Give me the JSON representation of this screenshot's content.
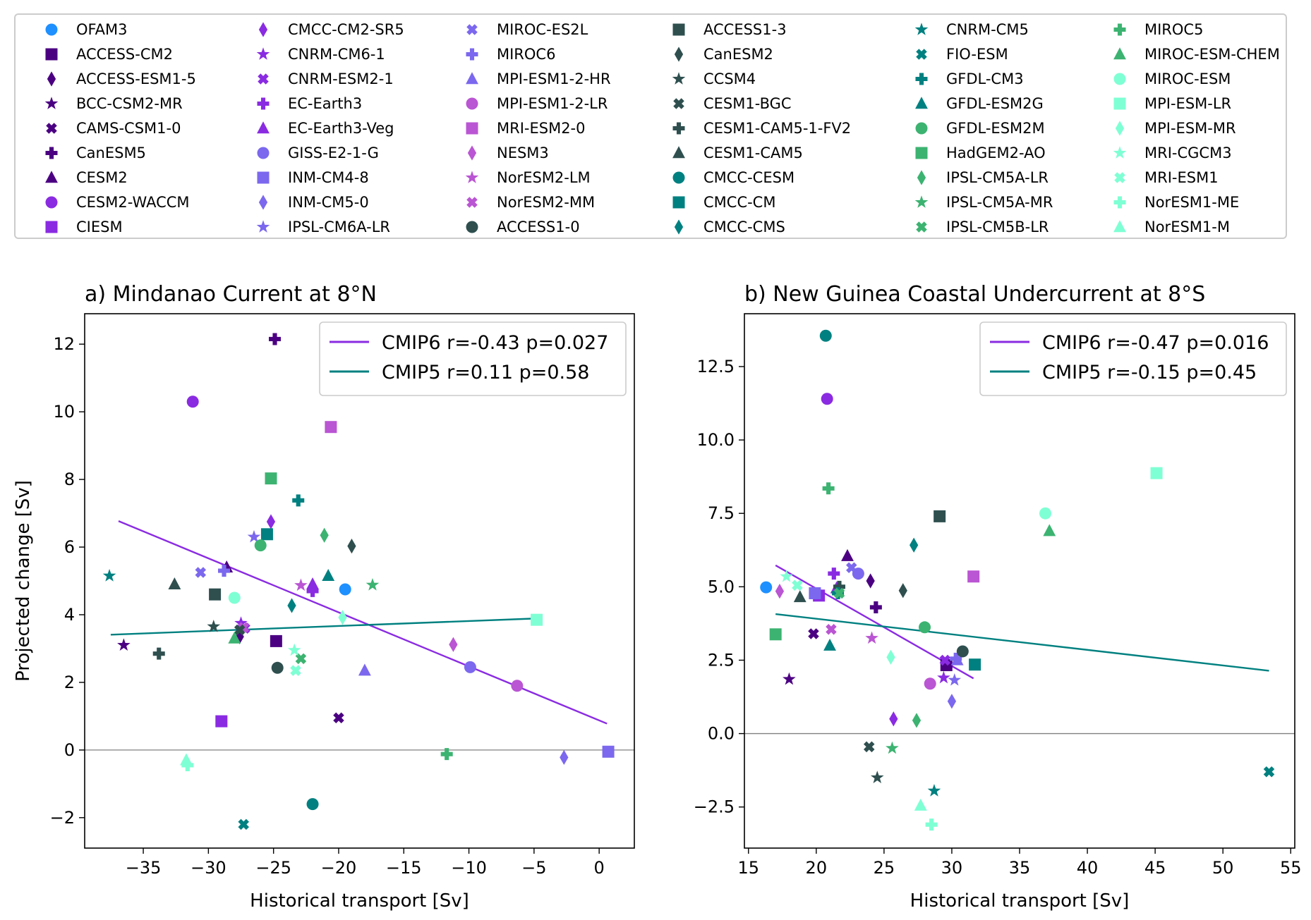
{
  "legend": {
    "entries": [
      {
        "name": "OFAM3",
        "marker": "circle",
        "color": "#1e90ff"
      },
      {
        "name": "ACCESS-CM2",
        "marker": "square",
        "color": "#4b0082"
      },
      {
        "name": "ACCESS-ESM1-5",
        "marker": "diamond",
        "color": "#4b0082"
      },
      {
        "name": "BCC-CSM2-MR",
        "marker": "star",
        "color": "#4b0082"
      },
      {
        "name": "CAMS-CSM1-0",
        "marker": "x",
        "color": "#4b0082"
      },
      {
        "name": "CanESM5",
        "marker": "plus",
        "color": "#4b0082"
      },
      {
        "name": "CESM2",
        "marker": "triangle",
        "color": "#4b0082"
      },
      {
        "name": "CESM2-WACCM",
        "marker": "circle",
        "color": "#8a2be2"
      },
      {
        "name": "CIESM",
        "marker": "square",
        "color": "#8a2be2"
      },
      {
        "name": "CMCC-CM2-SR5",
        "marker": "diamond",
        "color": "#8a2be2"
      },
      {
        "name": "CNRM-CM6-1",
        "marker": "star",
        "color": "#8a2be2"
      },
      {
        "name": "CNRM-ESM2-1",
        "marker": "x",
        "color": "#8a2be2"
      },
      {
        "name": "EC-Earth3",
        "marker": "plus",
        "color": "#8a2be2"
      },
      {
        "name": "EC-Earth3-Veg",
        "marker": "triangle",
        "color": "#8a2be2"
      },
      {
        "name": "GISS-E2-1-G",
        "marker": "circle",
        "color": "#7b68ee"
      },
      {
        "name": "INM-CM4-8",
        "marker": "square",
        "color": "#7b68ee"
      },
      {
        "name": "INM-CM5-0",
        "marker": "diamond",
        "color": "#7b68ee"
      },
      {
        "name": "IPSL-CM6A-LR",
        "marker": "star",
        "color": "#7b68ee"
      },
      {
        "name": "MIROC-ES2L",
        "marker": "x",
        "color": "#7b68ee"
      },
      {
        "name": "MIROC6",
        "marker": "plus",
        "color": "#7b68ee"
      },
      {
        "name": "MPI-ESM1-2-HR",
        "marker": "triangle",
        "color": "#7b68ee"
      },
      {
        "name": "MPI-ESM1-2-LR",
        "marker": "circle",
        "color": "#ba55d3"
      },
      {
        "name": "MRI-ESM2-0",
        "marker": "square",
        "color": "#ba55d3"
      },
      {
        "name": "NESM3",
        "marker": "diamond",
        "color": "#ba55d3"
      },
      {
        "name": "NorESM2-LM",
        "marker": "star",
        "color": "#ba55d3"
      },
      {
        "name": "NorESM2-MM",
        "marker": "x",
        "color": "#ba55d3"
      },
      {
        "name": "ACCESS1-0",
        "marker": "circle",
        "color": "#2f4f4f"
      },
      {
        "name": "ACCESS1-3",
        "marker": "square",
        "color": "#2f4f4f"
      },
      {
        "name": "CanESM2",
        "marker": "diamond",
        "color": "#2f4f4f"
      },
      {
        "name": "CCSM4",
        "marker": "star",
        "color": "#2f4f4f"
      },
      {
        "name": "CESM1-BGC",
        "marker": "x",
        "color": "#2f4f4f"
      },
      {
        "name": "CESM1-CAM5-1-FV2",
        "marker": "plus",
        "color": "#2f4f4f"
      },
      {
        "name": "CESM1-CAM5",
        "marker": "triangle",
        "color": "#2f4f4f"
      },
      {
        "name": "CMCC-CESM",
        "marker": "circle",
        "color": "#008080"
      },
      {
        "name": "CMCC-CM",
        "marker": "square",
        "color": "#008080"
      },
      {
        "name": "CMCC-CMS",
        "marker": "diamond",
        "color": "#008080"
      },
      {
        "name": "CNRM-CM5",
        "marker": "star",
        "color": "#008080"
      },
      {
        "name": "FIO-ESM",
        "marker": "x",
        "color": "#008080"
      },
      {
        "name": "GFDL-CM3",
        "marker": "plus",
        "color": "#008080"
      },
      {
        "name": "GFDL-ESM2G",
        "marker": "triangle",
        "color": "#008080"
      },
      {
        "name": "GFDL-ESM2M",
        "marker": "circle",
        "color": "#3cb371"
      },
      {
        "name": "HadGEM2-AO",
        "marker": "square",
        "color": "#3cb371"
      },
      {
        "name": "IPSL-CM5A-LR",
        "marker": "diamond",
        "color": "#3cb371"
      },
      {
        "name": "IPSL-CM5A-MR",
        "marker": "star",
        "color": "#3cb371"
      },
      {
        "name": "IPSL-CM5B-LR",
        "marker": "x",
        "color": "#3cb371"
      },
      {
        "name": "MIROC5",
        "marker": "plus",
        "color": "#3cb371"
      },
      {
        "name": "MIROC-ESM-CHEM",
        "marker": "triangle",
        "color": "#3cb371"
      },
      {
        "name": "MIROC-ESM",
        "marker": "circle",
        "color": "#7fffd4"
      },
      {
        "name": "MPI-ESM-LR",
        "marker": "square",
        "color": "#7fffd4"
      },
      {
        "name": "MPI-ESM-MR",
        "marker": "diamond",
        "color": "#7fffd4"
      },
      {
        "name": "MRI-CGCM3",
        "marker": "star",
        "color": "#7fffd4"
      },
      {
        "name": "MRI-ESM1",
        "marker": "x",
        "color": "#7fffd4"
      },
      {
        "name": "NorESM1-ME",
        "marker": "plus",
        "color": "#7fffd4"
      },
      {
        "name": "NorESM1-M",
        "marker": "triangle",
        "color": "#7fffd4"
      }
    ]
  },
  "fit_colors": {
    "CMIP6": "#8a2be2",
    "CMIP5": "#008080"
  },
  "chart_data": [
    {
      "type": "scatter",
      "title": "a) Mindanao Current at 8°N",
      "xlabel": "Historical transport [Sv]",
      "ylabel": "Projected change [Sv]",
      "xlim": [
        -39.5,
        2.7
      ],
      "ylim": [
        -2.9,
        12.9
      ],
      "xticks": [
        -35,
        -30,
        -25,
        -20,
        -15,
        -10,
        -5,
        0
      ],
      "xtick_labels": [
        "−35",
        "−30",
        "−25",
        "−20",
        "−15",
        "−10",
        "−5",
        "0"
      ],
      "yticks": [
        -2,
        0,
        2,
        4,
        6,
        8,
        10,
        12
      ],
      "ytick_labels": [
        "−2",
        "0",
        "2",
        "4",
        "6",
        "8",
        "10",
        "12"
      ],
      "zero_line": true,
      "legend_position": "upper-right",
      "fits": [
        {
          "label": "CMIP6 r=-0.43 p=0.027",
          "series": "CMIP6",
          "x": [
            -36.9,
            0.6
          ],
          "y": [
            6.77,
            0.78
          ]
        },
        {
          "label": "CMIP5 r=0.11 p=0.58",
          "series": "CMIP5",
          "x": [
            -37.5,
            -4.8
          ],
          "y": [
            3.41,
            3.89
          ]
        }
      ],
      "points": [
        {
          "model": "OFAM3",
          "x": -19.5,
          "y": 4.75
        },
        {
          "model": "ACCESS-CM2",
          "x": -24.8,
          "y": 3.22
        },
        {
          "model": "ACCESS-ESM1-5",
          "x": -27.6,
          "y": 3.35
        },
        {
          "model": "BCC-CSM2-MR",
          "x": -36.5,
          "y": 3.1
        },
        {
          "model": "CAMS-CSM1-0",
          "x": -20.0,
          "y": 0.95
        },
        {
          "model": "CanESM5",
          "x": -24.9,
          "y": 12.15
        },
        {
          "model": "CESM2",
          "x": -28.6,
          "y": 5.4
        },
        {
          "model": "CESM2-WACCM",
          "x": -31.2,
          "y": 10.3
        },
        {
          "model": "CIESM",
          "x": -29.0,
          "y": 0.85
        },
        {
          "model": "CMCC-CM2-SR5",
          "x": -25.2,
          "y": 6.75
        },
        {
          "model": "CNRM-CM6-1",
          "x": -27.5,
          "y": 3.75
        },
        {
          "model": "CNRM-ESM2-1",
          "x": -27.2,
          "y": 3.6
        },
        {
          "model": "EC-Earth3",
          "x": -22.0,
          "y": 4.7
        },
        {
          "model": "EC-Earth3-Veg",
          "x": -22.0,
          "y": 4.9
        },
        {
          "model": "GISS-E2-1-G",
          "x": -9.9,
          "y": 2.45
        },
        {
          "model": "INM-CM4-8",
          "x": 0.7,
          "y": -0.05
        },
        {
          "model": "INM-CM5-0",
          "x": -2.7,
          "y": -0.22
        },
        {
          "model": "IPSL-CM6A-LR",
          "x": -26.5,
          "y": 6.3
        },
        {
          "model": "MIROC-ES2L",
          "x": -30.6,
          "y": 5.25
        },
        {
          "model": "MIROC6",
          "x": -28.8,
          "y": 5.3
        },
        {
          "model": "MPI-ESM1-2-HR",
          "x": -18.0,
          "y": 2.35
        },
        {
          "model": "MPI-ESM1-2-LR",
          "x": -6.3,
          "y": 1.9
        },
        {
          "model": "MRI-ESM2-0",
          "x": -20.6,
          "y": 9.55
        },
        {
          "model": "NESM3",
          "x": -11.2,
          "y": 3.12
        },
        {
          "model": "NorESM2-LM",
          "x": -22.9,
          "y": 4.87
        },
        {
          "model": "NorESM2-MM",
          "x": -27.3,
          "y": 3.62
        },
        {
          "model": "ACCESS1-0",
          "x": -24.7,
          "y": 2.43
        },
        {
          "model": "ACCESS1-3",
          "x": -29.5,
          "y": 4.6
        },
        {
          "model": "CanESM2",
          "x": -19.0,
          "y": 6.03
        },
        {
          "model": "CCSM4",
          "x": -29.6,
          "y": 3.65
        },
        {
          "model": "CESM1-BGC",
          "x": -27.6,
          "y": 3.55
        },
        {
          "model": "CESM1-CAM5-1-FV2",
          "x": -33.8,
          "y": 2.85
        },
        {
          "model": "CESM1-CAM5",
          "x": -32.6,
          "y": 4.9
        },
        {
          "model": "CMCC-CESM",
          "x": -22.0,
          "y": -1.6
        },
        {
          "model": "CMCC-CM",
          "x": -25.5,
          "y": 6.38
        },
        {
          "model": "CMCC-CMS",
          "x": -23.6,
          "y": 4.27
        },
        {
          "model": "CNRM-CM5",
          "x": -37.6,
          "y": 5.15
        },
        {
          "model": "FIO-ESM",
          "x": -27.3,
          "y": -2.2
        },
        {
          "model": "GFDL-CM3",
          "x": -23.1,
          "y": 7.38
        },
        {
          "model": "GFDL-ESM2G",
          "x": -20.8,
          "y": 5.15
        },
        {
          "model": "GFDL-ESM2M",
          "x": -26.0,
          "y": 6.05
        },
        {
          "model": "HadGEM2-AO",
          "x": -25.2,
          "y": 8.03
        },
        {
          "model": "IPSL-CM5A-LR",
          "x": -21.1,
          "y": 6.35
        },
        {
          "model": "IPSL-CM5A-MR",
          "x": -17.4,
          "y": 4.88
        },
        {
          "model": "IPSL-CM5B-LR",
          "x": -22.9,
          "y": 2.7
        },
        {
          "model": "MIROC5",
          "x": -11.7,
          "y": -0.12
        },
        {
          "model": "MIROC-ESM-CHEM",
          "x": -28.0,
          "y": 3.3
        },
        {
          "model": "MIROC-ESM",
          "x": -28.0,
          "y": 4.5
        },
        {
          "model": "MPI-ESM-LR",
          "x": -4.8,
          "y": 3.85
        },
        {
          "model": "MPI-ESM-MR",
          "x": -19.7,
          "y": 3.92
        },
        {
          "model": "MRI-CGCM3",
          "x": -23.4,
          "y": 2.95
        },
        {
          "model": "MRI-ESM1",
          "x": -23.3,
          "y": 2.35
        },
        {
          "model": "NorESM1-ME",
          "x": -31.6,
          "y": -0.45
        },
        {
          "model": "NorESM1-M",
          "x": -31.7,
          "y": -0.3
        }
      ]
    },
    {
      "type": "scatter",
      "title": "b) New Guinea Coastal Undercurrent at 8°S",
      "xlabel": "Historical transport [Sv]",
      "ylabel": "",
      "xlim": [
        14.7,
        55.3
      ],
      "ylim": [
        -3.9,
        14.3
      ],
      "xticks": [
        15,
        20,
        25,
        30,
        35,
        40,
        45,
        50,
        55
      ],
      "xtick_labels": [
        "15",
        "20",
        "25",
        "30",
        "35",
        "40",
        "45",
        "50",
        "55"
      ],
      "yticks": [
        -2.5,
        0,
        2.5,
        5,
        7.5,
        10,
        12.5
      ],
      "ytick_labels": [
        "−2.5",
        "0.0",
        "2.5",
        "5.0",
        "7.5",
        "10.0",
        "12.5"
      ],
      "zero_line": true,
      "legend_position": "upper-right",
      "fits": [
        {
          "label": "CMIP6 r=-0.47 p=0.016",
          "series": "CMIP6",
          "x": [
            17.0,
            31.6
          ],
          "y": [
            5.73,
            1.88
          ]
        },
        {
          "label": "CMIP5 r=-0.15 p=0.45",
          "series": "CMIP5",
          "x": [
            17.0,
            53.4
          ],
          "y": [
            4.07,
            2.14
          ]
        }
      ],
      "points": [
        {
          "model": "OFAM3",
          "x": 16.3,
          "y": 4.98
        },
        {
          "model": "ACCESS-CM2",
          "x": 29.6,
          "y": 2.33
        },
        {
          "model": "ACCESS-ESM1-5",
          "x": 24.0,
          "y": 5.2
        },
        {
          "model": "BCC-CSM2-MR",
          "x": 18.0,
          "y": 1.85
        },
        {
          "model": "CAMS-CSM1-0",
          "x": 19.8,
          "y": 3.4
        },
        {
          "model": "CanESM5",
          "x": 24.4,
          "y": 4.3
        },
        {
          "model": "CESM2",
          "x": 22.3,
          "y": 6.05
        },
        {
          "model": "CESM2-WACCM",
          "x": 20.8,
          "y": 11.4
        },
        {
          "model": "CIESM",
          "x": 20.2,
          "y": 4.7
        },
        {
          "model": "CMCC-CM2-SR5",
          "x": 25.7,
          "y": 0.5
        },
        {
          "model": "CNRM-CM6-1",
          "x": 29.4,
          "y": 1.9
        },
        {
          "model": "CNRM-ESM2-1",
          "x": 29.5,
          "y": 2.5
        },
        {
          "model": "EC-Earth3",
          "x": 21.3,
          "y": 5.45
        },
        {
          "model": "EC-Earth3-Veg",
          "x": 21.5,
          "y": 4.95
        },
        {
          "model": "GISS-E2-1-G",
          "x": 23.1,
          "y": 5.45
        },
        {
          "model": "INM-CM4-8",
          "x": 19.9,
          "y": 4.78
        },
        {
          "model": "INM-CM5-0",
          "x": 30.0,
          "y": 1.1
        },
        {
          "model": "IPSL-CM6A-LR",
          "x": 30.2,
          "y": 1.82
        },
        {
          "model": "MIROC-ES2L",
          "x": 22.6,
          "y": 5.65
        },
        {
          "model": "MIROC6",
          "x": 30.3,
          "y": 2.55
        },
        {
          "model": "MPI-ESM1-2-HR",
          "x": 30.4,
          "y": 2.5
        },
        {
          "model": "MPI-ESM1-2-LR",
          "x": 28.4,
          "y": 1.7
        },
        {
          "model": "MRI-ESM2-0",
          "x": 31.6,
          "y": 5.35
        },
        {
          "model": "NESM3",
          "x": 17.3,
          "y": 4.85
        },
        {
          "model": "NorESM2-LM",
          "x": 24.1,
          "y": 3.25
        },
        {
          "model": "NorESM2-MM",
          "x": 21.1,
          "y": 3.55
        },
        {
          "model": "ACCESS1-0",
          "x": 30.8,
          "y": 2.8
        },
        {
          "model": "ACCESS1-3",
          "x": 29.1,
          "y": 7.4
        },
        {
          "model": "CanESM2",
          "x": 26.4,
          "y": 4.87
        },
        {
          "model": "CCSM4",
          "x": 24.5,
          "y": -1.5
        },
        {
          "model": "CESM1-BGC",
          "x": 23.9,
          "y": -0.45
        },
        {
          "model": "CESM1-CAM5-1-FV2",
          "x": 21.7,
          "y": 5.0
        },
        {
          "model": "CESM1-CAM5",
          "x": 18.8,
          "y": 4.65
        },
        {
          "model": "CMCC-CESM",
          "x": 20.7,
          "y": 13.55
        },
        {
          "model": "CMCC-CM",
          "x": 31.7,
          "y": 2.35
        },
        {
          "model": "CMCC-CMS",
          "x": 27.2,
          "y": 6.42
        },
        {
          "model": "CNRM-CM5",
          "x": 28.7,
          "y": -1.95
        },
        {
          "model": "FIO-ESM",
          "x": 53.4,
          "y": -1.3
        },
        {
          "model": "GFDL-CM3",
          "x": 21.6,
          "y": 4.78
        },
        {
          "model": "GFDL-ESM2G",
          "x": 21.0,
          "y": 3.0
        },
        {
          "model": "GFDL-ESM2M",
          "x": 28.0,
          "y": 3.62
        },
        {
          "model": "HadGEM2-AO",
          "x": 17.0,
          "y": 3.38
        },
        {
          "model": "IPSL-CM5A-LR",
          "x": 27.4,
          "y": 0.45
        },
        {
          "model": "IPSL-CM5A-MR",
          "x": 25.6,
          "y": -0.5
        },
        {
          "model": "IPSL-CM5B-LR",
          "x": 21.7,
          "y": 4.78
        },
        {
          "model": "MIROC5",
          "x": 20.9,
          "y": 8.35
        },
        {
          "model": "MIROC-ESM-CHEM",
          "x": 37.2,
          "y": 6.9
        },
        {
          "model": "MIROC-ESM",
          "x": 36.9,
          "y": 7.5
        },
        {
          "model": "MPI-ESM-LR",
          "x": 45.1,
          "y": 8.87
        },
        {
          "model": "MPI-ESM-MR",
          "x": 25.5,
          "y": 2.6
        },
        {
          "model": "MRI-CGCM3",
          "x": 17.8,
          "y": 5.35
        },
        {
          "model": "MRI-ESM1",
          "x": 18.6,
          "y": 5.05
        },
        {
          "model": "NorESM1-ME",
          "x": 28.5,
          "y": -3.1
        },
        {
          "model": "NorESM1-M",
          "x": 27.7,
          "y": -2.45
        }
      ]
    }
  ]
}
